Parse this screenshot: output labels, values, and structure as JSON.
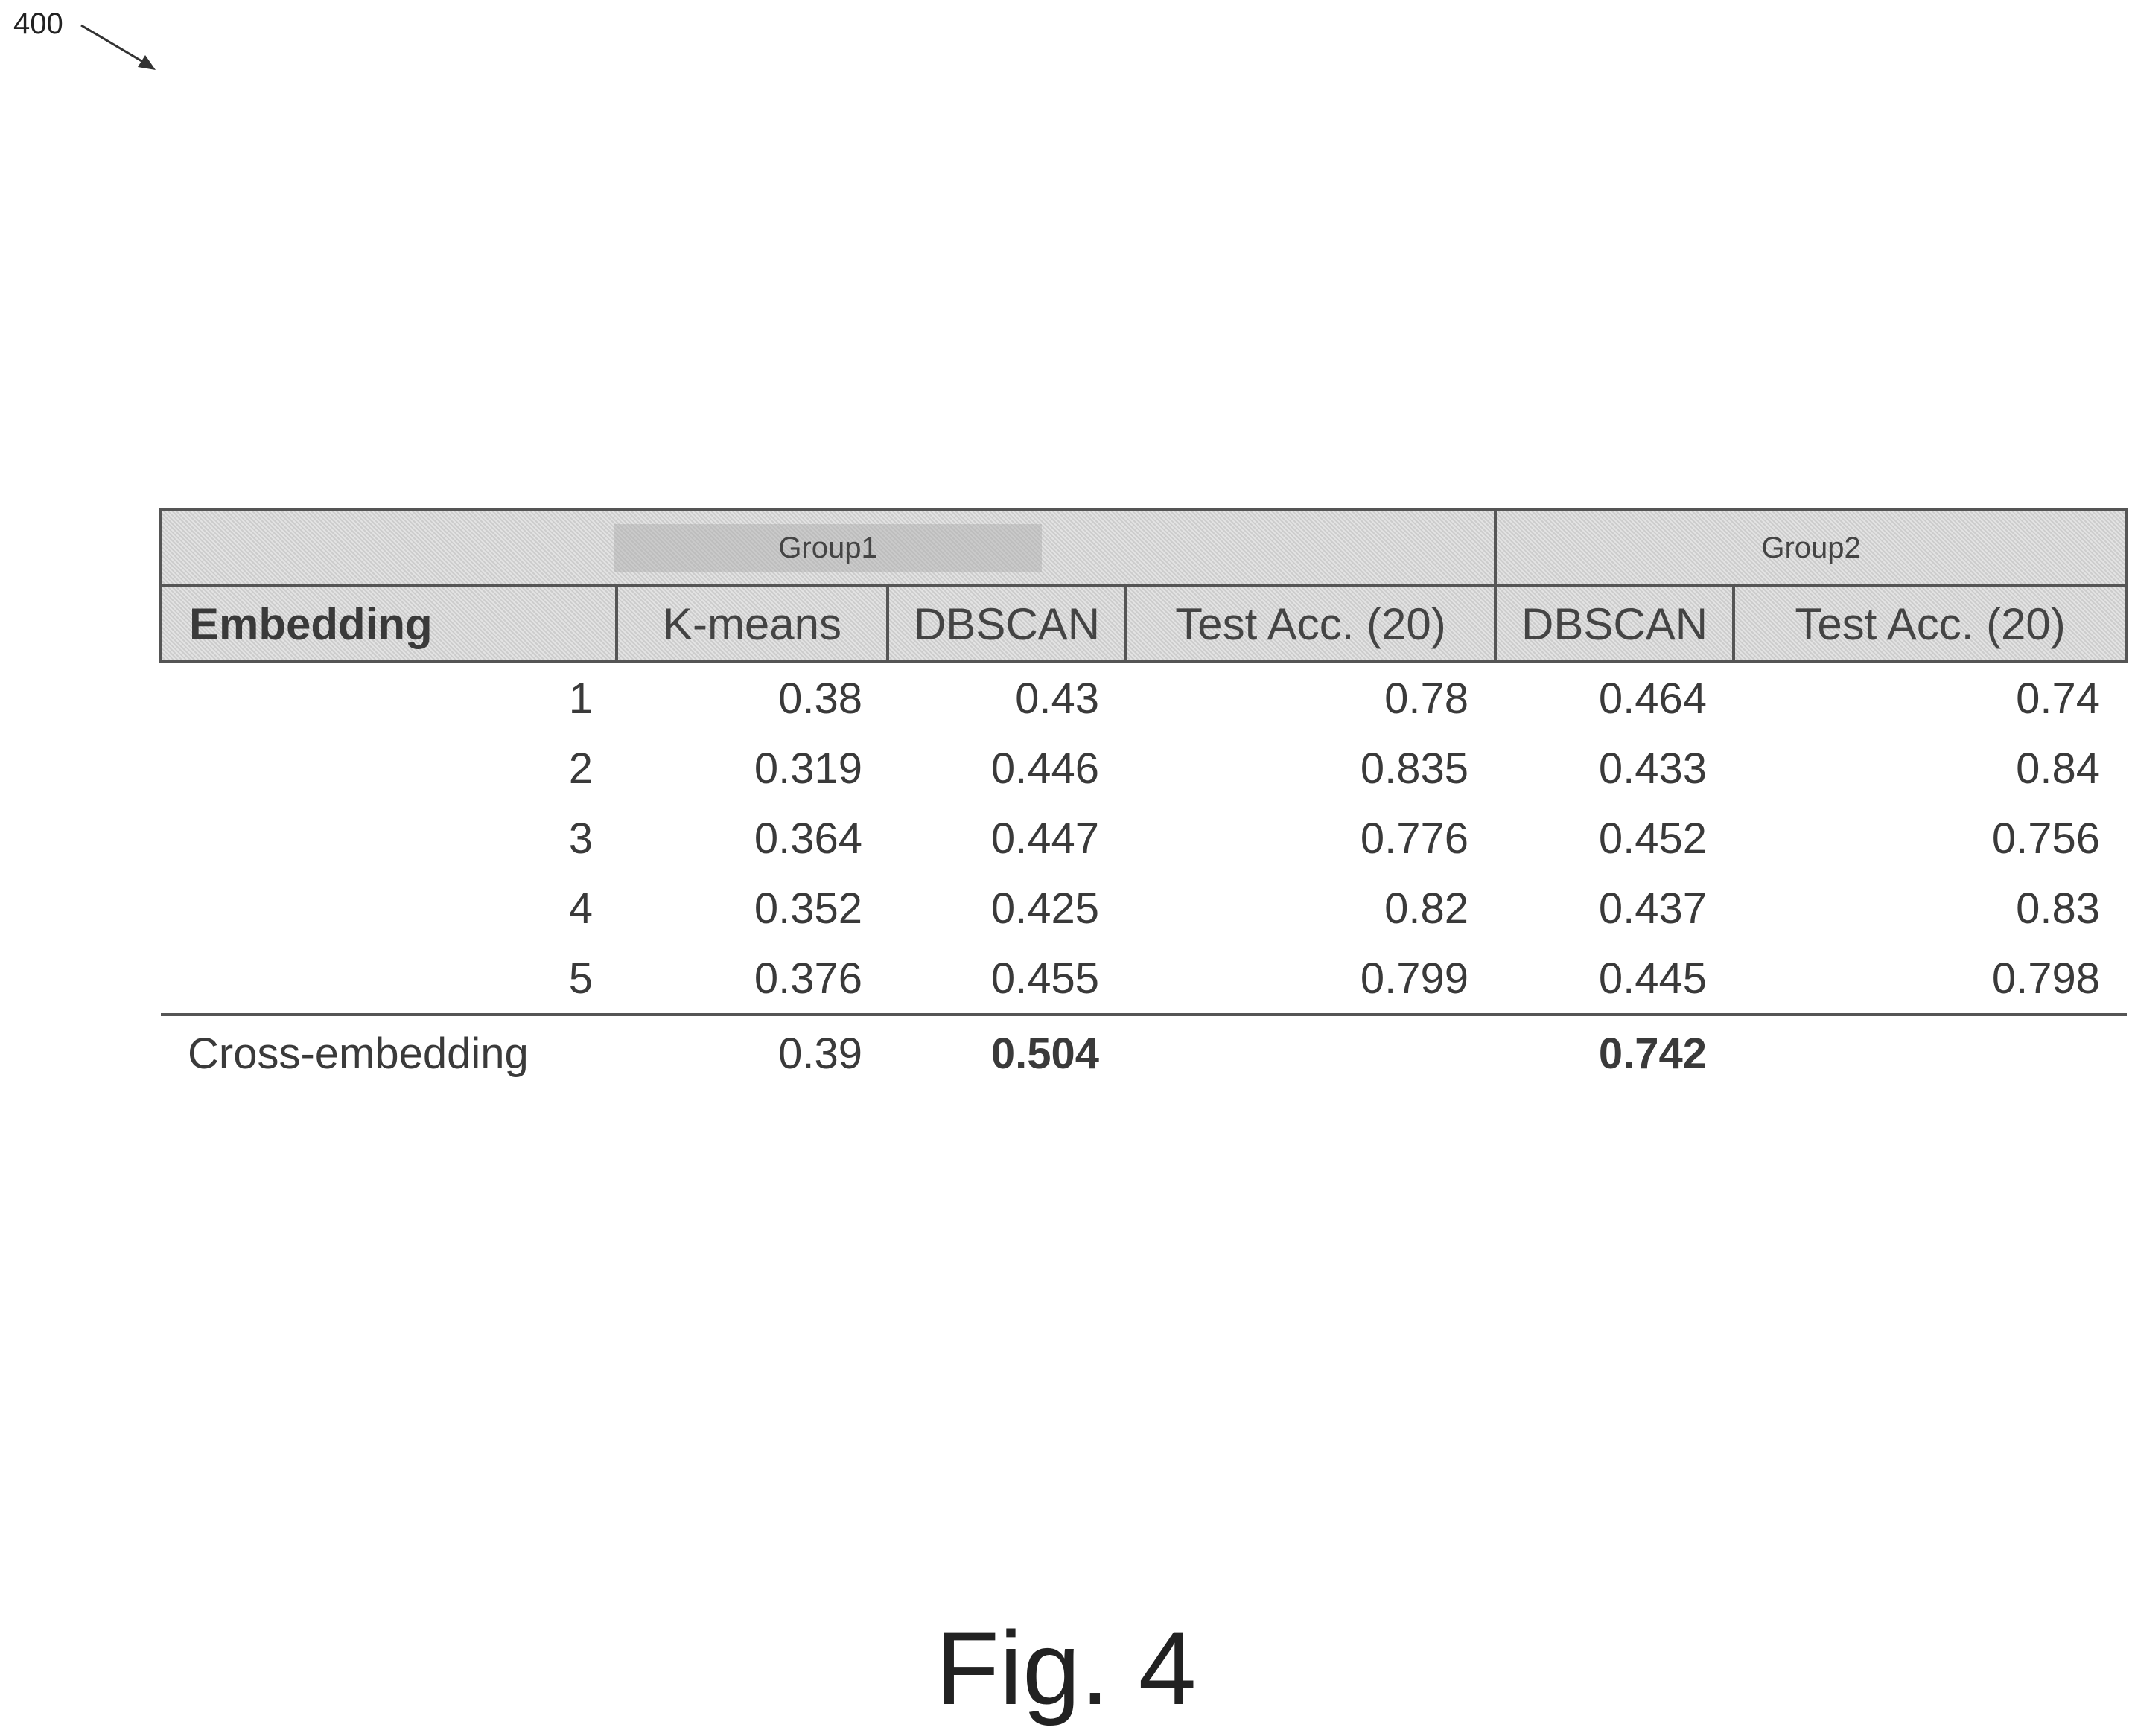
{
  "figure": {
    "reference_number": "400",
    "caption": "Fig. 4"
  },
  "table": {
    "groups": [
      "Group1",
      "Group2"
    ],
    "headers": [
      "Embedding",
      "K-means",
      "DBSCAN",
      "Test Acc. (20)",
      "DBSCAN",
      "Test Acc. (20)"
    ],
    "rows": [
      [
        "1",
        "0.38",
        "0.43",
        "0.78",
        "0.464",
        "0.74"
      ],
      [
        "2",
        "0.319",
        "0.446",
        "0.835",
        "0.433",
        "0.84"
      ],
      [
        "3",
        "0.364",
        "0.447",
        "0.776",
        "0.452",
        "0.756"
      ],
      [
        "4",
        "0.352",
        "0.425",
        "0.82",
        "0.437",
        "0.83"
      ],
      [
        "5",
        "0.376",
        "0.455",
        "0.799",
        "0.445",
        "0.798"
      ]
    ],
    "cross": {
      "label": "Cross-embedding",
      "kmeans": "0.39",
      "group1_dbscan": "0.504",
      "group1_test_acc": "",
      "group2_dbscan": "0.742",
      "group2_test_acc": ""
    }
  }
}
